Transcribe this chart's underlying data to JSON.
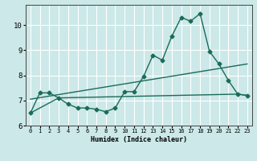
{
  "title": "",
  "xlabel": "Humidex (Indice chaleur)",
  "ylabel": "",
  "bg_color": "#cce8e8",
  "grid_color": "#ffffff",
  "line_color": "#1a6b5a",
  "xlim": [
    -0.5,
    23.5
  ],
  "ylim": [
    6.0,
    10.8
  ],
  "yticks": [
    6,
    7,
    8,
    9,
    10
  ],
  "xticks": [
    0,
    1,
    2,
    3,
    4,
    5,
    6,
    7,
    8,
    9,
    10,
    11,
    12,
    13,
    14,
    15,
    16,
    17,
    18,
    19,
    20,
    21,
    22,
    23
  ],
  "series1_x": [
    0,
    1,
    2,
    3,
    4,
    5,
    6,
    7,
    8,
    9,
    10,
    11,
    12,
    13,
    14,
    15,
    16,
    17,
    18,
    19,
    20,
    21,
    22,
    23
  ],
  "series1_y": [
    6.5,
    7.3,
    7.3,
    7.1,
    6.85,
    6.7,
    6.7,
    6.65,
    6.55,
    6.7,
    7.35,
    7.35,
    7.95,
    8.8,
    8.6,
    9.55,
    10.3,
    10.15,
    10.45,
    8.95,
    8.45,
    7.8,
    7.25,
    7.2
  ],
  "series2_x": [
    0,
    3,
    22,
    23
  ],
  "series2_y": [
    6.5,
    7.1,
    7.25,
    7.2
  ],
  "series3_x": [
    0,
    23
  ],
  "series3_y": [
    7.05,
    8.45
  ],
  "marker_style": "D",
  "marker_size": 2.5,
  "linewidth": 1.0
}
